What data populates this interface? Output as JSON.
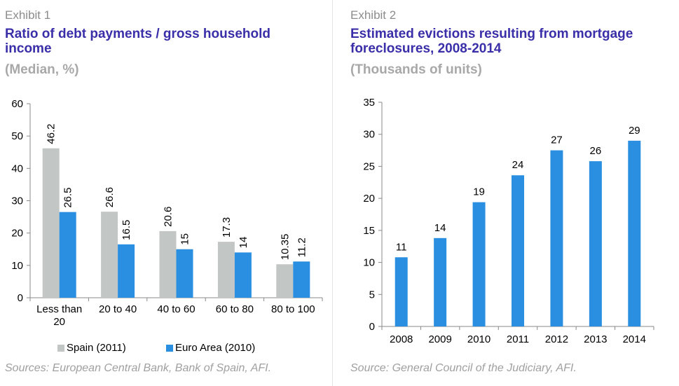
{
  "exhibit1": {
    "label": "Exhibit 1",
    "title_line1": "Ratio of debt payments / gross household",
    "title_line2": "income",
    "subtitle": "(Median, %)",
    "source": "Sources: European Central Bank, Bank of Spain, AFI."
  },
  "exhibit2": {
    "label": "Exhibit 2",
    "title_line1": "Estimated evictions resulting from mortgage",
    "title_line2": "foreclosures, 2008-2014",
    "subtitle": "(Thousands of units)",
    "source": "Source: General Council of the Judiciary, AFI."
  },
  "chart_data": [
    {
      "type": "bar",
      "title": "Ratio of debt payments / gross household income",
      "subtitle": "(Median, %)",
      "categories": [
        "Less than 20",
        "20 to 40",
        "40 to 60",
        "60 to 80",
        "80 to 100"
      ],
      "series": [
        {
          "name": "Spain (2011)",
          "color": "#c2c6c4",
          "values": [
            46.2,
            26.6,
            20.6,
            17.3,
            10.35
          ],
          "labels": [
            "46.2",
            "26.6",
            "20.6",
            "17.3",
            "10.35"
          ]
        },
        {
          "name": "Euro Area (2010)",
          "color": "#2a8fe0",
          "values": [
            26.5,
            16.5,
            15,
            14,
            11.2
          ],
          "labels": [
            "26.5",
            "16.5",
            "15",
            "14",
            "11.2"
          ]
        }
      ],
      "ylim": [
        0,
        60
      ],
      "yticks": [
        0,
        10,
        20,
        30,
        40,
        50,
        60
      ],
      "legend": "bottom",
      "grid": false
    },
    {
      "type": "bar",
      "title": "Estimated evictions resulting from mortgage foreclosures, 2008-2014",
      "subtitle": "(Thousands of units)",
      "categories": [
        "2008",
        "2009",
        "2010",
        "2011",
        "2012",
        "2013",
        "2014"
      ],
      "values": [
        10.8,
        13.8,
        19.4,
        23.6,
        27.5,
        25.8,
        29
      ],
      "labels": [
        "11",
        "14",
        "19",
        "24",
        "27",
        "26",
        "29"
      ],
      "color": "#2a8fe0",
      "ylim": [
        0,
        35
      ],
      "yticks": [
        0,
        5,
        10,
        15,
        20,
        25,
        30,
        35
      ],
      "grid": false
    }
  ]
}
